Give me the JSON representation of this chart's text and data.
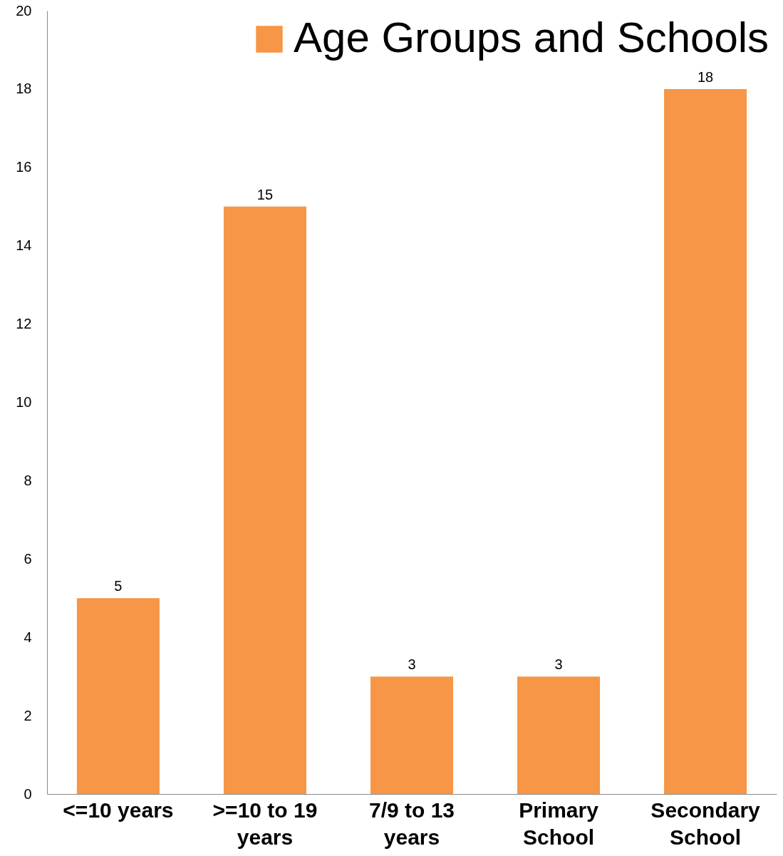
{
  "chart_data": {
    "type": "bar",
    "categories": [
      "<=10 years",
      ">=10 to 19 years",
      "7/9 to 13 years",
      "Primary School",
      "Secondary School"
    ],
    "series": [
      {
        "name": "Age Groups and Schools",
        "color": "#f79646",
        "values": [
          5,
          15,
          3,
          3,
          18
        ]
      }
    ],
    "ylim": [
      0,
      20
    ],
    "yticks": [
      0,
      2,
      4,
      6,
      8,
      10,
      12,
      14,
      16,
      18,
      20
    ],
    "grid": false,
    "legend": "top right",
    "data_labels": true
  }
}
